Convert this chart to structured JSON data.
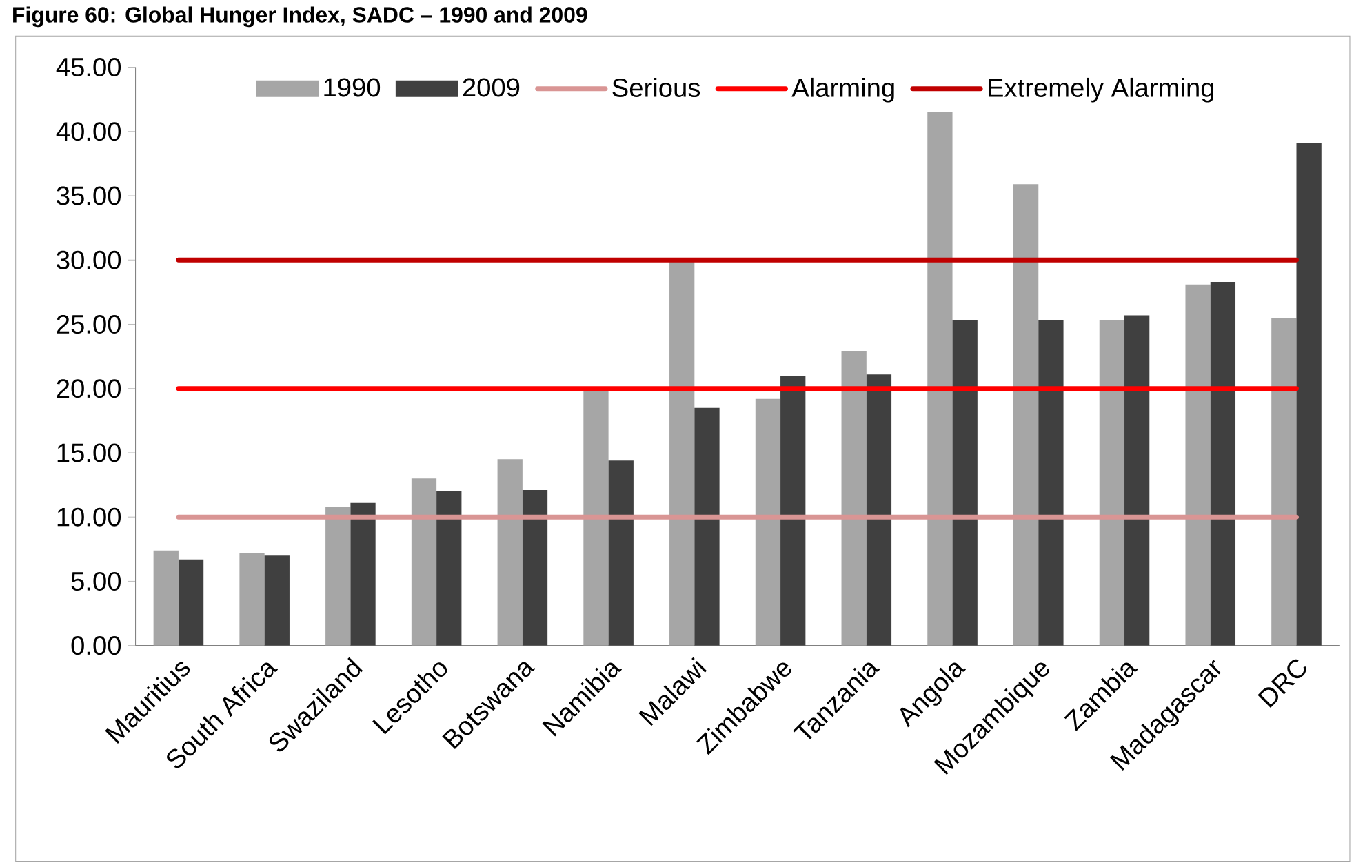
{
  "chart_data": {
    "type": "bar",
    "title": "Figure 60: Global Hunger Index, SADC – 1990 and 2009",
    "categories": [
      "Mauritius",
      "South Africa",
      "Swaziland",
      "Lesotho",
      "Botswana",
      "Namibia",
      "Malawi",
      "Zimbabwe",
      "Tanzania",
      "Angola",
      "Mozambique",
      "Zambia",
      "Madagascar",
      "DRC"
    ],
    "series": [
      {
        "name": "1990",
        "color": "#a6a6a6",
        "values": [
          7.4,
          7.2,
          10.8,
          13.0,
          14.5,
          20.0,
          30.0,
          19.2,
          22.9,
          41.5,
          35.9,
          25.3,
          28.1,
          25.5
        ]
      },
      {
        "name": "2009",
        "color": "#404040",
        "values": [
          6.7,
          7.0,
          11.1,
          12.0,
          12.1,
          14.4,
          18.5,
          21.0,
          21.1,
          25.3,
          25.3,
          25.7,
          28.3,
          39.1
        ]
      }
    ],
    "ref_lines": [
      {
        "axis": "y",
        "value": 10,
        "label": "Serious",
        "color": "#d99594"
      },
      {
        "axis": "y",
        "value": 20,
        "label": "Alarming",
        "color": "#ff0000"
      },
      {
        "axis": "y",
        "value": 30,
        "label": "Extremely Alarming",
        "color": "#c00000"
      }
    ],
    "ylim": [
      0,
      45
    ],
    "yticks": [
      {
        "value": 0,
        "label": "0.00"
      },
      {
        "value": 5,
        "label": "5.00"
      },
      {
        "value": 10,
        "label": "10.00"
      },
      {
        "value": 15,
        "label": "15.00"
      },
      {
        "value": 20,
        "label": "20.00"
      },
      {
        "value": 25,
        "label": "25.00"
      },
      {
        "value": 30,
        "label": "30.00"
      },
      {
        "value": 35,
        "label": "35.00"
      },
      {
        "value": 40,
        "label": "40.00"
      },
      {
        "value": 45,
        "label": "45.00"
      }
    ],
    "legend": "top",
    "grid": false
  }
}
